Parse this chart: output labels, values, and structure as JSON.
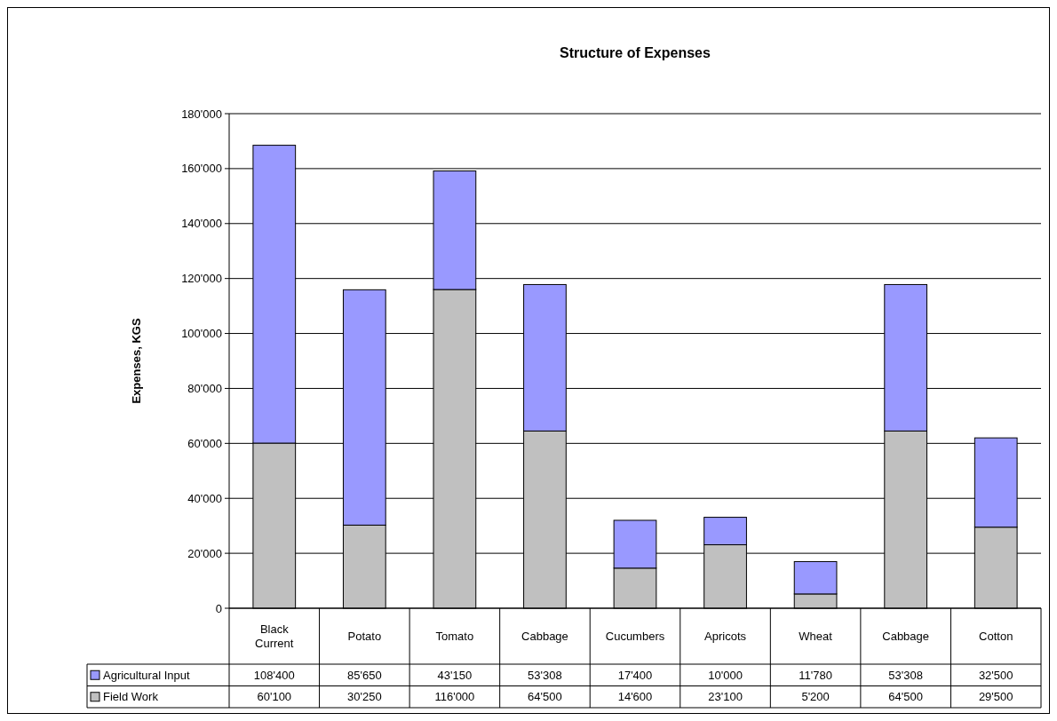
{
  "chart_data": {
    "type": "bar",
    "title": "Structure of Expenses",
    "ylabel": "Expenses, KGS",
    "categories": [
      "Black Current",
      "Potato",
      "Tomato",
      "Cabbage",
      "Cucumbers",
      "Apricots",
      "Wheat",
      "Cabbage",
      "Cotton"
    ],
    "stacked": true,
    "series": [
      {
        "name": "Field Work",
        "color": "#c0c0c0",
        "values": [
          60100,
          30250,
          116000,
          64500,
          14600,
          23100,
          5200,
          64500,
          29500
        ],
        "value_labels": [
          "60'100",
          "30'250",
          "116'000",
          "64'500",
          "14'600",
          "23'100",
          "5'200",
          "64'500",
          "29'500"
        ]
      },
      {
        "name": "Agricultural Input",
        "color": "#9999ff",
        "values": [
          108400,
          85650,
          43150,
          53308,
          17400,
          10000,
          11780,
          53308,
          32500
        ],
        "value_labels": [
          "108'400",
          "85'650",
          "43'150",
          "53'308",
          "17'400",
          "10'000",
          "11'780",
          "53'308",
          "32'500"
        ]
      }
    ],
    "ylim": [
      0,
      180000
    ],
    "yticks": [
      {
        "value": 0,
        "label": "0"
      },
      {
        "value": 20000,
        "label": "20'000"
      },
      {
        "value": 40000,
        "label": "40'000"
      },
      {
        "value": 60000,
        "label": "60'000"
      },
      {
        "value": 80000,
        "label": "80'000"
      },
      {
        "value": 100000,
        "label": "100'000"
      },
      {
        "value": 120000,
        "label": "120'000"
      },
      {
        "value": 140000,
        "label": "140'000"
      },
      {
        "value": 160000,
        "label": "160'000"
      },
      {
        "value": 180000,
        "label": "180'000"
      }
    ],
    "grid": "y",
    "legend": "bottom"
  }
}
